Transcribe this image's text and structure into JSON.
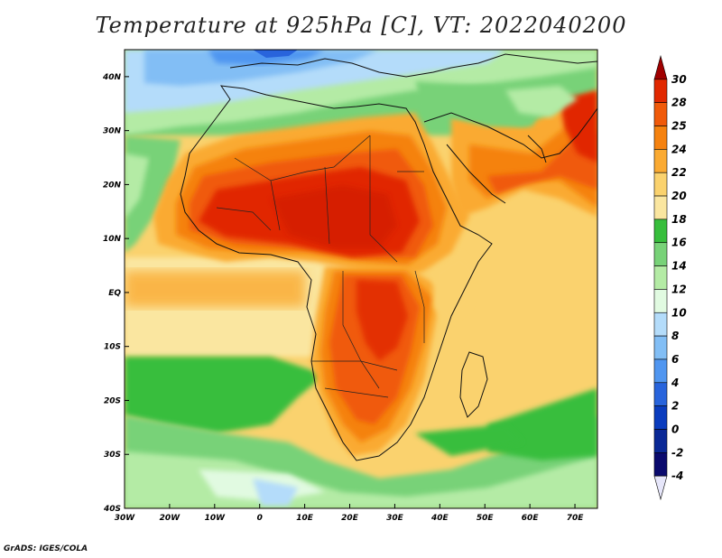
{
  "title": "Temperature at 925hPa [C], VT: 2022040200",
  "credit": "GrADS: IGES/COLA",
  "map": {
    "lon_range": [
      -30,
      75
    ],
    "lat_range": [
      -40,
      45
    ],
    "lon_ticks": [
      {
        "value": -30,
        "label": "30W"
      },
      {
        "value": -20,
        "label": "20W"
      },
      {
        "value": -10,
        "label": "10W"
      },
      {
        "value": 0,
        "label": "0"
      },
      {
        "value": 10,
        "label": "10E"
      },
      {
        "value": 20,
        "label": "20E"
      },
      {
        "value": 30,
        "label": "30E"
      },
      {
        "value": 40,
        "label": "40E"
      },
      {
        "value": 50,
        "label": "50E"
      },
      {
        "value": 60,
        "label": "60E"
      },
      {
        "value": 70,
        "label": "70E"
      }
    ],
    "lat_ticks": [
      {
        "value": 40,
        "label": "40N"
      },
      {
        "value": 30,
        "label": "30N"
      },
      {
        "value": 20,
        "label": "20N"
      },
      {
        "value": 10,
        "label": "10N"
      },
      {
        "value": 0,
        "label": "EQ"
      },
      {
        "value": -10,
        "label": "10S"
      },
      {
        "value": -20,
        "label": "20S"
      },
      {
        "value": -30,
        "label": "30S"
      },
      {
        "value": -40,
        "label": "40S"
      }
    ]
  },
  "colorbar": {
    "levels": [
      "30",
      "28",
      "25",
      "24",
      "22",
      "20",
      "18",
      "16",
      "14",
      "12",
      "10",
      "8",
      "6",
      "4",
      "2",
      "0",
      "-2",
      "-4"
    ],
    "colors": [
      "#a00000",
      "#e12800",
      "#f05a0a",
      "#f5820f",
      "#faaa32",
      "#fad26e",
      "#fae6a0",
      "#37be3c",
      "#78d278",
      "#b4eba5",
      "#e1fae1",
      "#b4dcfa",
      "#82bef5",
      "#5096f0",
      "#2864dc",
      "#0a3cbe",
      "#0a2896",
      "#0a0a6e",
      "#e6e6fa"
    ]
  }
}
